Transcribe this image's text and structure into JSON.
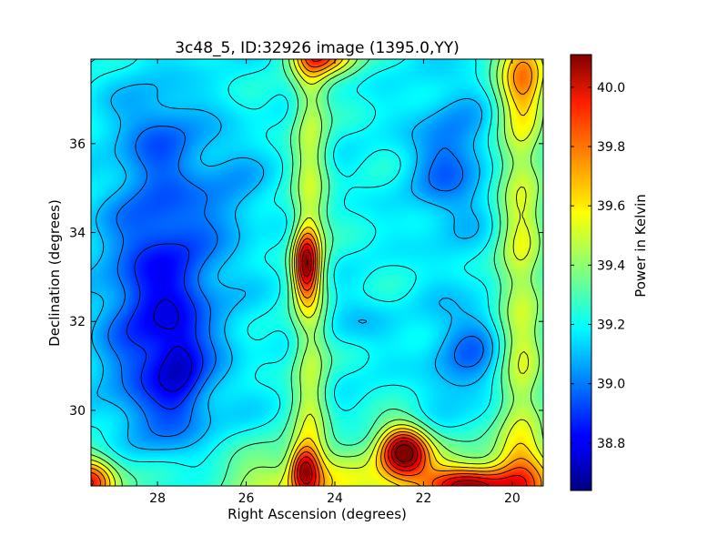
{
  "chart_data": {
    "type": "heatmap",
    "title": "3c48_5, ID:32926 image (1395.0,YY)",
    "xlabel": "Right Ascension (degrees)",
    "ylabel": "Declination (degrees)",
    "colorbar_label": "Power in Kelvin",
    "xlim": [
      29.5,
      19.3
    ],
    "ylim": [
      28.3,
      37.9
    ],
    "clim": [
      38.64,
      40.11
    ],
    "x_ticks": [
      28,
      26,
      24,
      22,
      20
    ],
    "y_ticks": [
      30,
      32,
      34,
      36
    ],
    "colorbar_ticks": [
      38.8,
      39.0,
      39.2,
      39.4,
      39.6,
      39.8,
      40.0
    ],
    "colormap": "jet",
    "contours": true,
    "grid": false,
    "colorbar_position": "right",
    "features": [
      {
        "ra": 24.65,
        "dec": 33.3,
        "value": 40.1
      },
      {
        "ra": 22.45,
        "dec": 29.1,
        "value": 40.05
      },
      {
        "ra": 24.3,
        "dec": 37.8,
        "value": 39.8
      },
      {
        "ra": 21.0,
        "dec": 28.5,
        "value": 39.85
      },
      {
        "ra": 24.7,
        "dec": 28.8,
        "value": 39.75
      },
      {
        "ra": 19.7,
        "dec": 37.5,
        "value": 39.6
      },
      {
        "ra": 27.6,
        "dec": 31.0,
        "value": 38.64
      },
      {
        "ra": 28.3,
        "dec": 32.0,
        "value": 38.85
      },
      {
        "ra": 28.0,
        "dec": 36.3,
        "value": 38.85
      },
      {
        "ra": 21.6,
        "dec": 35.8,
        "value": 38.95
      },
      {
        "ra": 20.5,
        "dec": 31.0,
        "value": 38.95
      },
      {
        "ra": 23.5,
        "dec": 32.0,
        "value": 39.1
      },
      {
        "ra": 26.5,
        "dec": 35.0,
        "value": 39.05
      },
      {
        "ra": 29.5,
        "dec": 28.5,
        "value": 39.8
      }
    ]
  }
}
